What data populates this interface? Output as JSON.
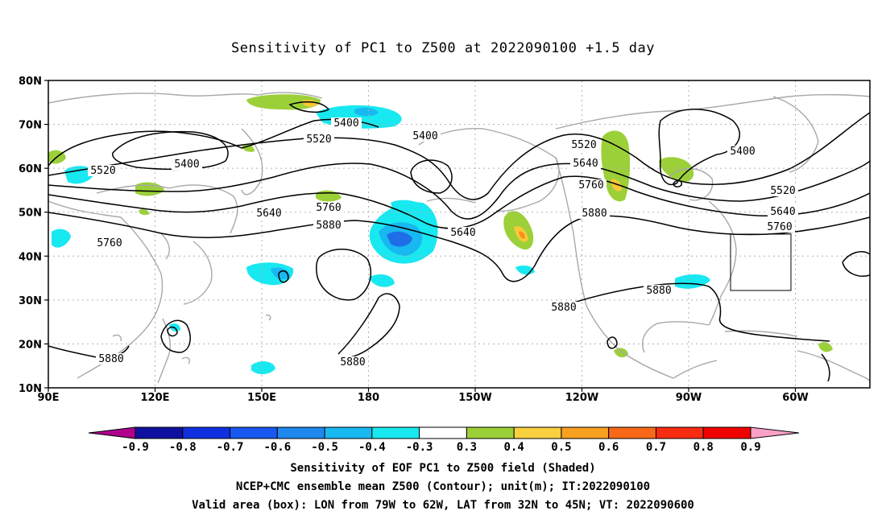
{
  "title": "Sensitivity of PC1 to Z500 at 2022090100 +1.5 day",
  "lat_labels": [
    "80N",
    "70N",
    "60N",
    "50N",
    "40N",
    "30N",
    "20N",
    "10N"
  ],
  "lon_labels": [
    "90E",
    "120E",
    "150E",
    "180",
    "150W",
    "120W",
    "90W",
    "60W"
  ],
  "contour_labels": [
    {
      "text": "5400"
    },
    {
      "text": "5400"
    },
    {
      "text": "5400"
    },
    {
      "text": "5400"
    },
    {
      "text": "5520"
    },
    {
      "text": "5520"
    },
    {
      "text": "5520"
    },
    {
      "text": "5520"
    },
    {
      "text": "5640"
    },
    {
      "text": "5640"
    },
    {
      "text": "5640"
    },
    {
      "text": "5640"
    },
    {
      "text": "5760"
    },
    {
      "text": "5760"
    },
    {
      "text": "5760"
    },
    {
      "text": "5760"
    },
    {
      "text": "5880"
    },
    {
      "text": "5880"
    },
    {
      "text": "5880"
    },
    {
      "text": "5880"
    },
    {
      "text": "5880"
    },
    {
      "text": "5880"
    }
  ],
  "colorbar": {
    "labels": [
      "-0.9",
      "-0.8",
      "-0.7",
      "-0.6",
      "-0.5",
      "-0.4",
      "-0.3",
      "0.3",
      "0.4",
      "0.5",
      "0.6",
      "0.7",
      "0.8",
      "0.9"
    ],
    "colors": [
      "#b0008c",
      "#1010a0",
      "#1030e0",
      "#1858f0",
      "#1e88ee",
      "#18b8f0",
      "#18e8f0",
      "#ffffff",
      "#9cd038",
      "#f8d040",
      "#f8a020",
      "#f86818",
      "#f82c10",
      "#f00000",
      "#f8a0c8"
    ]
  },
  "shading_colors": {
    "neg_light": "#18e8f0",
    "neg_mid": "#18b8f0",
    "neg_dark": "#1e6ee8",
    "pos_light": "#9cd038",
    "pos_mid": "#f8c838",
    "pos_dark": "#f89020"
  },
  "valid_box": {
    "lon_min": "79W",
    "lon_max": "62W",
    "lat_min": "32N",
    "lat_max": "45N"
  },
  "captions": [
    "Sensitivity of EOF PC1 to Z500 field (Shaded)",
    "NCEP+CMC ensemble mean Z500 (Contour); unit(m); IT:2022090100",
    "Valid area (box): LON from 79W to 62W, LAT from 32N to 45N; VT: 2022090600"
  ]
}
